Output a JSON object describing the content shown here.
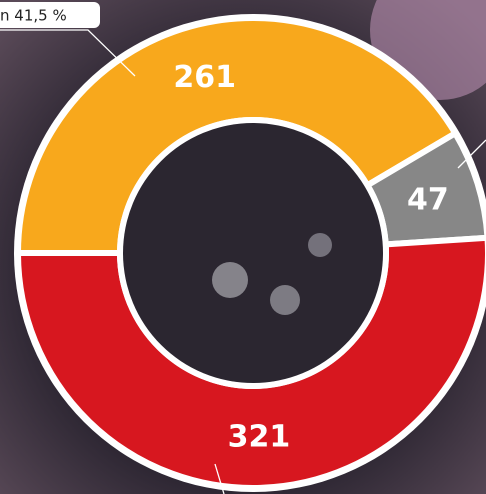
{
  "chart_data": {
    "type": "donut",
    "annotation": "n 41,5 %",
    "values": [
      261,
      47,
      321
    ],
    "colors": [
      "#f8a81c",
      "#878787",
      "#d7171f"
    ]
  }
}
